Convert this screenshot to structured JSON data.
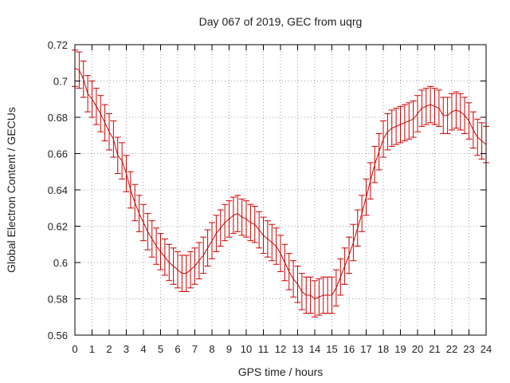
{
  "chart_data": {
    "type": "line",
    "title": "Day 067 of 2019, GEC from uqrg",
    "xlabel": "GPS time / hours",
    "ylabel": "Global Electron Content / GECUs",
    "xlim": [
      0,
      24
    ],
    "ylim": [
      0.56,
      0.72
    ],
    "grid": true,
    "x_ticks": [
      "0",
      "1",
      "2",
      "3",
      "4",
      "5",
      "6",
      "7",
      "8",
      "9",
      "10",
      "11",
      "12",
      "13",
      "14",
      "15",
      "16",
      "17",
      "18",
      "19",
      "20",
      "21",
      "22",
      "23",
      "24"
    ],
    "y_ticks": [
      "0.56",
      "0.58",
      "0.6",
      "0.62",
      "0.64",
      "0.66",
      "0.68",
      "0.7",
      "0.72"
    ],
    "error_bar": 0.01,
    "colors": {
      "series": "#cc0000",
      "grid": "#a0a0a0",
      "axis": "#000000"
    },
    "series": [
      {
        "name": "GEC",
        "x": [
          0,
          0.25,
          0.5,
          0.75,
          1,
          1.25,
          1.5,
          1.75,
          2,
          2.25,
          2.5,
          2.75,
          3,
          3.25,
          3.5,
          3.75,
          4,
          4.25,
          4.5,
          4.75,
          5,
          5.25,
          5.5,
          5.75,
          6,
          6.25,
          6.5,
          6.75,
          7,
          7.25,
          7.5,
          7.75,
          8,
          8.25,
          8.5,
          8.75,
          9,
          9.25,
          9.5,
          9.75,
          10,
          10.25,
          10.5,
          10.75,
          11,
          11.25,
          11.5,
          11.75,
          12,
          12.25,
          12.5,
          12.75,
          13,
          13.25,
          13.5,
          13.75,
          14,
          14.25,
          14.5,
          14.75,
          15,
          15.25,
          15.5,
          15.75,
          16,
          16.25,
          16.5,
          16.75,
          17,
          17.25,
          17.5,
          17.75,
          18,
          18.25,
          18.5,
          18.75,
          19,
          19.25,
          19.5,
          19.75,
          20,
          20.25,
          20.5,
          20.75,
          21,
          21.25,
          21.5,
          21.75,
          22,
          22.25,
          22.5,
          22.75,
          23,
          23.25,
          23.5,
          23.75,
          24
        ],
        "values": [
          0.707,
          0.706,
          0.701,
          0.693,
          0.69,
          0.686,
          0.682,
          0.677,
          0.672,
          0.668,
          0.659,
          0.656,
          0.649,
          0.64,
          0.633,
          0.627,
          0.622,
          0.617,
          0.613,
          0.609,
          0.606,
          0.603,
          0.6,
          0.598,
          0.596,
          0.594,
          0.594,
          0.596,
          0.598,
          0.601,
          0.604,
          0.608,
          0.612,
          0.616,
          0.619,
          0.622,
          0.624,
          0.626,
          0.627,
          0.625,
          0.624,
          0.622,
          0.621,
          0.618,
          0.615,
          0.613,
          0.611,
          0.609,
          0.605,
          0.6,
          0.595,
          0.591,
          0.588,
          0.584,
          0.582,
          0.582,
          0.58,
          0.581,
          0.582,
          0.582,
          0.582,
          0.586,
          0.592,
          0.598,
          0.604,
          0.611,
          0.619,
          0.627,
          0.636,
          0.645,
          0.654,
          0.661,
          0.668,
          0.672,
          0.674,
          0.675,
          0.676,
          0.677,
          0.678,
          0.679,
          0.682,
          0.685,
          0.686,
          0.687,
          0.686,
          0.685,
          0.681,
          0.681,
          0.683,
          0.684,
          0.683,
          0.681,
          0.678,
          0.673,
          0.669,
          0.667,
          0.665
        ]
      }
    ]
  }
}
